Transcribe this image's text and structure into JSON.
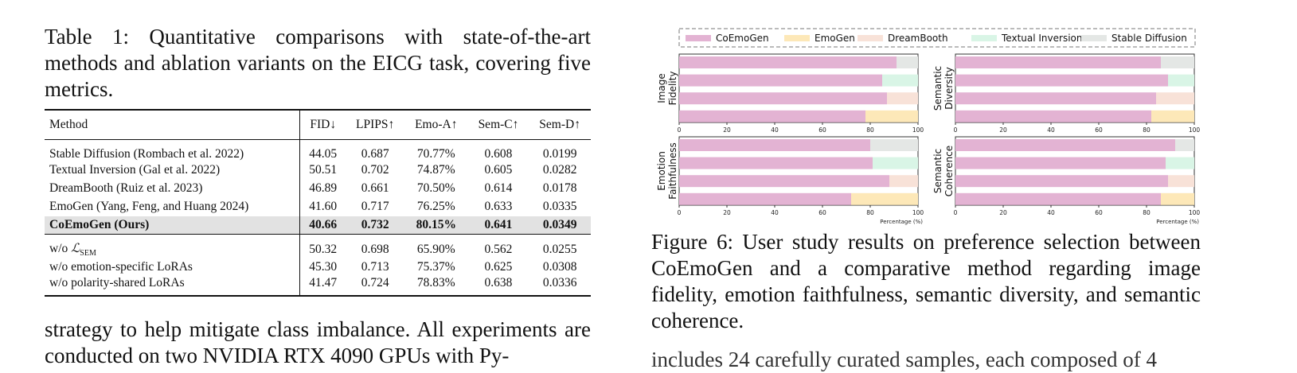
{
  "table": {
    "caption": "Table 1: Quantitative comparisons with state-of-the-art methods and ablation variants on the EICG task, covering five metrics.",
    "headers": [
      "Method",
      "FID↓",
      "LPIPS↑",
      "Emo-A↑",
      "Sem-C↑",
      "Sem-D↑"
    ],
    "rows": [
      {
        "method": "Stable Diffusion (Rombach et al. 2022)",
        "fid": "44.05",
        "lpips": "0.687",
        "emoa": "70.77%",
        "semc": "0.608",
        "semd": "0.0199"
      },
      {
        "method": "Textual Inversion (Gal et al. 2022)",
        "fid": "50.51",
        "lpips": "0.702",
        "emoa": "74.87%",
        "semc": "0.605",
        "semd": "0.0282"
      },
      {
        "method": "DreamBooth (Ruiz et al. 2023)",
        "fid": "46.89",
        "lpips": "0.661",
        "emoa": "70.50%",
        "semc": "0.614",
        "semd": "0.0178"
      },
      {
        "method": "EmoGen (Yang, Feng, and Huang 2024)",
        "fid": "41.60",
        "lpips": "0.717",
        "emoa": "76.25%",
        "semc": "0.633",
        "semd": "0.0335"
      },
      {
        "method": "CoEmoGen (Ours)",
        "fid": "40.66",
        "lpips": "0.732",
        "emoa": "80.15%",
        "semc": "0.641",
        "semd": "0.0349"
      }
    ],
    "ablations": [
      {
        "prefix": "w/o ",
        "math": "ℒ",
        "sub": "SEM",
        "fid": "50.32",
        "lpips": "0.698",
        "emoa": "65.90%",
        "semc": "0.562",
        "semd": "0.0255"
      },
      {
        "method": "w/o emotion-specific LoRAs",
        "fid": "45.30",
        "lpips": "0.713",
        "emoa": "75.37%",
        "semc": "0.625",
        "semd": "0.0308"
      },
      {
        "method": "w/o polarity-shared LoRAs",
        "fid": "41.47",
        "lpips": "0.724",
        "emoa": "78.83%",
        "semc": "0.638",
        "semd": "0.0336"
      }
    ]
  },
  "left_text": "strategy to help mitigate class imbalance. All experiments are conducted on two NVIDIA RTX 4090 GPUs with Py-",
  "figure_caption": "Figure 6: User study results on preference selection between CoEmoGen and a comparative method regarding image fidelity, emotion faithfulness, semantic diversity, and semantic coherence.",
  "right_text": "includes 24 carefully curated samples, each composed of 4",
  "chart_data": {
    "type": "bar",
    "orientation": "horizontal-stacked",
    "legend": [
      "CoEmoGen",
      "EmoGen",
      "DreamBooth",
      "Textual Inversion",
      "Stable Diffusion"
    ],
    "legend_position": "top",
    "colors": {
      "CoEmoGen": "#e3b3d3",
      "EmoGen": "#fde8b8",
      "DreamBooth": "#f8e2d8",
      "Textual Inversion": "#d9f5e6",
      "Stable Diffusion": "#e4e7e5"
    },
    "xlim": [
      0,
      100
    ],
    "xticks": [
      "0",
      "20",
      "40",
      "60",
      "80",
      "100"
    ],
    "xlabel": "Percentage (%)",
    "panels": [
      {
        "ylabel": [
          "Image",
          "Fidelity"
        ],
        "bars": [
          {
            "coemogen": 91,
            "opponent": "Stable Diffusion"
          },
          {
            "coemogen": 85,
            "opponent": "Textual Inversion"
          },
          {
            "coemogen": 87,
            "opponent": "DreamBooth"
          },
          {
            "coemogen": 78,
            "opponent": "EmoGen"
          }
        ]
      },
      {
        "ylabel": [
          "Semantic",
          "Diversity"
        ],
        "bars": [
          {
            "coemogen": 86,
            "opponent": "Stable Diffusion"
          },
          {
            "coemogen": 89,
            "opponent": "Textual Inversion"
          },
          {
            "coemogen": 84,
            "opponent": "DreamBooth"
          },
          {
            "coemogen": 82,
            "opponent": "EmoGen"
          }
        ]
      },
      {
        "ylabel": [
          "Emotion",
          "Faithfulness"
        ],
        "bars": [
          {
            "coemogen": 80,
            "opponent": "Stable Diffusion"
          },
          {
            "coemogen": 81,
            "opponent": "Textual Inversion"
          },
          {
            "coemogen": 88,
            "opponent": "DreamBooth"
          },
          {
            "coemogen": 72,
            "opponent": "EmoGen"
          }
        ]
      },
      {
        "ylabel": [
          "Semantic",
          "Coherence"
        ],
        "bars": [
          {
            "coemogen": 92,
            "opponent": "Stable Diffusion"
          },
          {
            "coemogen": 88,
            "opponent": "Textual Inversion"
          },
          {
            "coemogen": 89,
            "opponent": "DreamBooth"
          },
          {
            "coemogen": 86,
            "opponent": "EmoGen"
          }
        ]
      }
    ]
  }
}
